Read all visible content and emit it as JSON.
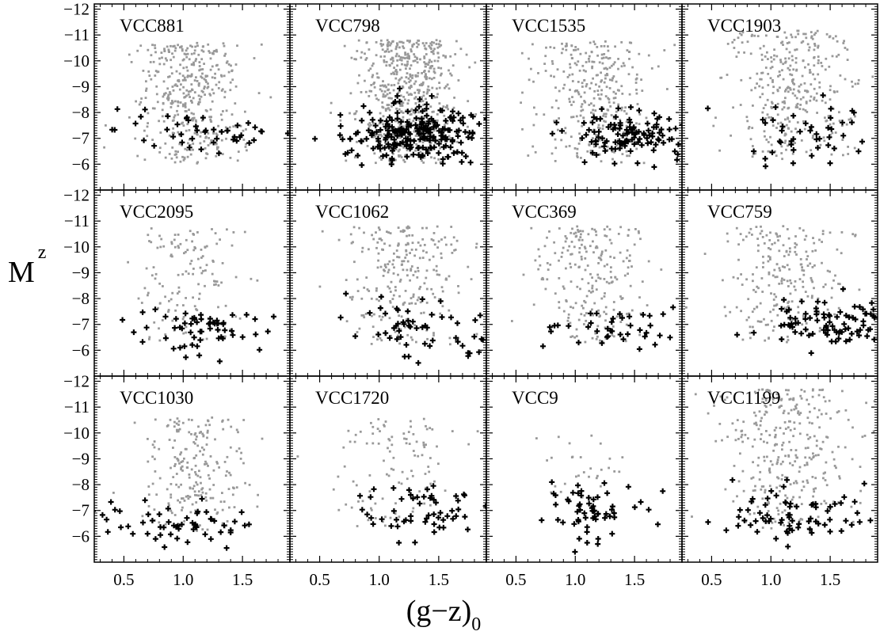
{
  "figure": {
    "ylabel": "M",
    "ylabel_sub": "z",
    "xlabel": "(g−z)",
    "xlabel_sub": "0"
  },
  "chart_data": {
    "type": "scatter",
    "grid": false,
    "xlim": [
      0.25,
      1.9
    ],
    "ylim": [
      -5,
      -12.2
    ],
    "y_inverted": true,
    "x_ticks": [
      0.5,
      1.0,
      1.5
    ],
    "x_tick_labels": [
      "0.5",
      "1.0",
      "1.5"
    ],
    "y_ticks": [
      -12,
      -11,
      -10,
      -9,
      -8,
      -7,
      -6
    ],
    "y_tick_labels": [
      "−12",
      "−11",
      "−10",
      "−9",
      "−8",
      "−7",
      "−6"
    ],
    "marker_styles": {
      "gray_color": "#999999",
      "black_color": "#000000"
    },
    "panels": [
      {
        "label": "VCC881",
        "gray": {
          "n": 420,
          "x_center": 1.08,
          "x_spread": 0.22,
          "y_min": -6.0,
          "y_max": -10.7
        },
        "black": {
          "n": 45,
          "x_center": 1.2,
          "x_spread": 0.38,
          "y_center": -7.3,
          "y_spread": 0.45
        }
      },
      {
        "label": "VCC798",
        "gray": {
          "n": 600,
          "x_center": 1.22,
          "x_spread": 0.22,
          "y_min": -6.0,
          "y_max": -10.8
        },
        "black": {
          "n": 230,
          "x_center": 1.3,
          "x_spread": 0.28,
          "y_center": -7.2,
          "y_spread": 0.55
        }
      },
      {
        "label": "VCC1535",
        "gray": {
          "n": 320,
          "x_center": 1.15,
          "x_spread": 0.25,
          "y_min": -6.0,
          "y_max": -10.8
        },
        "black": {
          "n": 120,
          "x_center": 1.45,
          "x_spread": 0.25,
          "y_center": -7.2,
          "y_spread": 0.45
        }
      },
      {
        "label": "VCC1903",
        "gray": {
          "n": 350,
          "x_center": 1.18,
          "x_spread": 0.25,
          "y_min": -6.2,
          "y_max": -11.2
        },
        "black": {
          "n": 45,
          "x_center": 1.3,
          "x_spread": 0.35,
          "y_center": -7.1,
          "y_spread": 0.6
        }
      },
      {
        "label": "VCC2095",
        "gray": {
          "n": 140,
          "x_center": 1.05,
          "x_spread": 0.22,
          "y_min": -6.2,
          "y_max": -10.8
        },
        "black": {
          "n": 60,
          "x_center": 1.2,
          "x_spread": 0.33,
          "y_center": -6.8,
          "y_spread": 0.45
        }
      },
      {
        "label": "VCC1062",
        "gray": {
          "n": 260,
          "x_center": 1.2,
          "x_spread": 0.25,
          "y_min": -6.2,
          "y_max": -10.8
        },
        "black": {
          "n": 55,
          "x_center": 1.35,
          "x_spread": 0.3,
          "y_center": -7.0,
          "y_spread": 0.6
        }
      },
      {
        "label": "VCC369",
        "gray": {
          "n": 230,
          "x_center": 1.15,
          "x_spread": 0.23,
          "y_min": -6.3,
          "y_max": -10.8
        },
        "black": {
          "n": 40,
          "x_center": 1.35,
          "x_spread": 0.3,
          "y_center": -7.0,
          "y_spread": 0.4
        }
      },
      {
        "label": "VCC759",
        "gray": {
          "n": 240,
          "x_center": 1.12,
          "x_spread": 0.27,
          "y_min": -6.3,
          "y_max": -10.8
        },
        "black": {
          "n": 90,
          "x_center": 1.45,
          "x_spread": 0.25,
          "y_center": -7.0,
          "y_spread": 0.45
        }
      },
      {
        "label": "VCC1030",
        "gray": {
          "n": 220,
          "x_center": 1.1,
          "x_spread": 0.22,
          "y_min": -6.2,
          "y_max": -10.6
        },
        "black": {
          "n": 60,
          "x_center": 1.0,
          "x_spread": 0.45,
          "y_center": -6.5,
          "y_spread": 0.35
        }
      },
      {
        "label": "VCC1720",
        "gray": {
          "n": 110,
          "x_center": 1.15,
          "x_spread": 0.3,
          "y_min": -6.3,
          "y_max": -10.6
        },
        "black": {
          "n": 55,
          "x_center": 1.35,
          "x_spread": 0.28,
          "y_center": -7.0,
          "y_spread": 0.55
        }
      },
      {
        "label": "VCC9",
        "gray": {
          "n": 30,
          "x_center": 1.05,
          "x_spread": 0.15,
          "y_min": -7.0,
          "y_max": -9.9
        },
        "black": {
          "n": 60,
          "x_center": 1.1,
          "x_spread": 0.2,
          "y_center": -6.8,
          "y_spread": 0.55
        }
      },
      {
        "label": "VCC1199",
        "gray": {
          "n": 330,
          "x_center": 1.12,
          "x_spread": 0.27,
          "y_min": -6.2,
          "y_max": -11.7
        },
        "black": {
          "n": 75,
          "x_center": 1.2,
          "x_spread": 0.4,
          "y_center": -6.8,
          "y_spread": 0.5
        }
      }
    ]
  }
}
